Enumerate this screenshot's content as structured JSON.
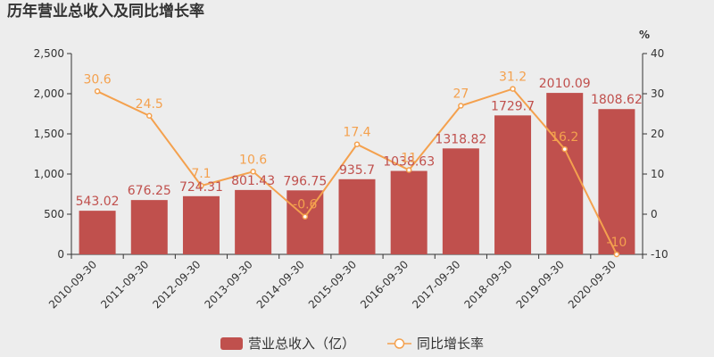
{
  "chart_data": {
    "type": "bar",
    "title": "历年营业总收入及同比增长率",
    "categories": [
      "2010-09-30",
      "2011-09-30",
      "2012-09-30",
      "2013-09-30",
      "2014-09-30",
      "2015-09-30",
      "2016-09-30",
      "2017-09-30",
      "2018-09-30",
      "2019-09-30",
      "2020-09-30"
    ],
    "series": [
      {
        "name": "营业总收入（亿）",
        "type": "bar",
        "axis": "left",
        "color": "#c0504d",
        "values": [
          543.02,
          676.25,
          724.31,
          801.43,
          796.75,
          935.7,
          1038.63,
          1318.82,
          1729.7,
          2010.09,
          1808.62
        ],
        "labels": [
          "543.02",
          "676.25",
          "724.31",
          "801.43",
          "796.75",
          "935.7",
          "1038.63",
          "1318.82",
          "1729.7",
          "2010.09",
          "1808.62"
        ]
      },
      {
        "name": "同比增长率",
        "type": "line",
        "axis": "right",
        "color": "#f4a14e",
        "values": [
          30.6,
          24.5,
          7.1,
          10.6,
          -0.6,
          17.4,
          11,
          27,
          31.2,
          16.2,
          -10
        ],
        "labels": [
          "30.6",
          "24.5",
          "7.1",
          "10.6",
          "-0.6",
          "17.4",
          "11",
          "27",
          "31.2",
          "16.2",
          "-10"
        ]
      }
    ],
    "yleft": {
      "lim": [
        0,
        2500
      ],
      "ticks": [
        "0",
        "500",
        "1,000",
        "1,500",
        "2,000",
        "2,500"
      ],
      "tick_values": [
        0,
        500,
        1000,
        1500,
        2000,
        2500
      ]
    },
    "yright": {
      "lim": [
        -10,
        40
      ],
      "unit": "%",
      "ticks": [
        "-10",
        "0",
        "10",
        "20",
        "30",
        "40"
      ],
      "tick_values": [
        -10,
        0,
        10,
        20,
        30,
        40
      ]
    },
    "legend": "bottom-center",
    "grid": false
  }
}
